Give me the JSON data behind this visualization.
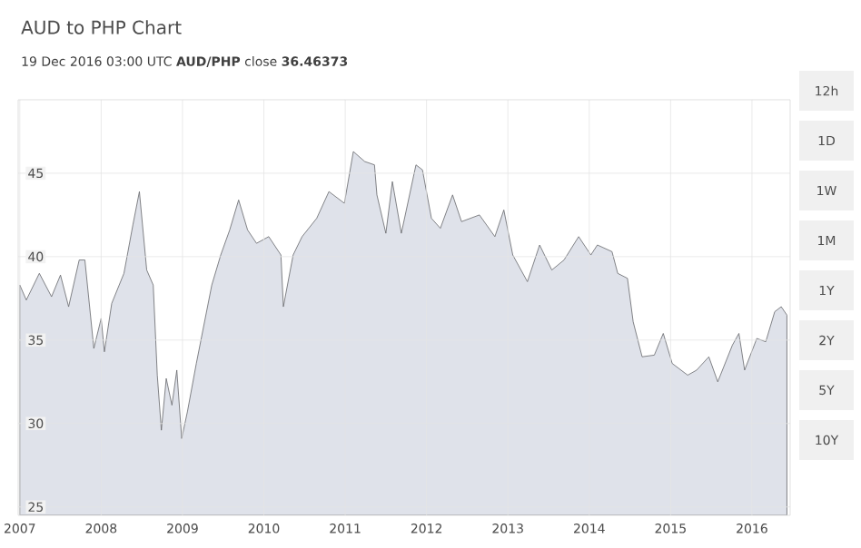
{
  "chart_data": {
    "type": "area",
    "title": "AUD to PHP Chart",
    "subtitle": "19 Dec 2016 03:00 UTC   **AUD/PHP** close **36.46373**",
    "x": [
      2007.0,
      2007.08,
      2007.24,
      2007.39,
      2007.5,
      2007.6,
      2007.73,
      2007.8,
      2007.91,
      2008.0,
      2008.04,
      2008.13,
      2008.28,
      2008.39,
      2008.47,
      2008.56,
      2008.64,
      2008.69,
      2008.74,
      2008.8,
      2008.87,
      2008.93,
      2008.99,
      2009.06,
      2009.17,
      2009.36,
      2009.47,
      2009.58,
      2009.69,
      2009.8,
      2009.91,
      2010.06,
      2010.21,
      2010.24,
      2010.36,
      2010.47,
      2010.65,
      2010.8,
      2010.99,
      2011.1,
      2011.24,
      2011.36,
      2011.39,
      2011.5,
      2011.58,
      2011.69,
      2011.87,
      2011.95,
      2012.06,
      2012.17,
      2012.32,
      2012.43,
      2012.65,
      2012.84,
      2012.95,
      2013.06,
      2013.24,
      2013.39,
      2013.54,
      2013.69,
      2013.87,
      2014.02,
      2014.1,
      2014.28,
      2014.35,
      2014.47,
      2014.54,
      2014.65,
      2014.8,
      2014.91,
      2015.02,
      2015.21,
      2015.32,
      2015.47,
      2015.58,
      2015.76,
      2015.84,
      2015.91,
      2016.06,
      2016.17,
      2016.28,
      2016.36,
      2016.43
    ],
    "series": [
      {
        "color": "#dfe2ea",
        "values": [
          38.3,
          37.4,
          39.0,
          37.6,
          38.9,
          37.0,
          39.8,
          39.8,
          34.5,
          36.3,
          34.3,
          37.2,
          39.0,
          41.9,
          43.9,
          39.2,
          38.3,
          32.9,
          29.6,
          32.7,
          31.1,
          33.2,
          29.1,
          30.7,
          33.6,
          38.3,
          40.1,
          41.6,
          43.4,
          41.6,
          40.8,
          41.2,
          40.1,
          37.0,
          40.1,
          41.2,
          42.3,
          43.9,
          43.2,
          46.3,
          45.7,
          45.5,
          43.7,
          41.4,
          44.5,
          41.4,
          45.5,
          45.2,
          42.3,
          41.7,
          43.7,
          42.1,
          42.5,
          41.2,
          42.8,
          40.1,
          38.5,
          40.7,
          39.2,
          39.8,
          41.2,
          40.1,
          40.7,
          40.3,
          39.0,
          38.7,
          36.1,
          34.0,
          34.1,
          35.4,
          33.6,
          32.9,
          33.2,
          34.0,
          32.5,
          34.7,
          35.4,
          33.2,
          35.1,
          34.9,
          36.7,
          37.0,
          36.5
        ]
      }
    ],
    "xlim": [
      2006.98,
      2016.47
    ],
    "ylim": [
      24.5,
      49.4
    ],
    "xticks": [
      2007,
      2008,
      2009,
      2010,
      2011,
      2012,
      2013,
      2014,
      2015,
      2016
    ],
    "yticks": [
      25,
      30,
      35,
      40,
      45
    ],
    "grid": true,
    "annotations": [
      "12h",
      "1D",
      "1W",
      "1M",
      "1Y",
      "2Y",
      "5Y",
      "10Y"
    ]
  }
}
